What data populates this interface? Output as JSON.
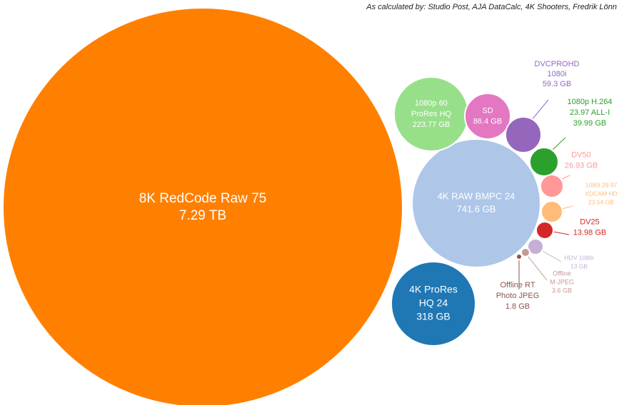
{
  "attribution": "As calculated by: Studio Post, AJA DataCalc, 4K Shooters, Fredrik Lönn",
  "chart_data": {
    "type": "bubble",
    "unit_note": "storage size",
    "bubbles": [
      {
        "id": "redcode",
        "lines": [
          "8K RedCode Raw 75",
          "7.29 TB"
        ],
        "value_gb": 7290,
        "color": "#ff8000",
        "label_color": "#ffffff"
      },
      {
        "id": "bmpc",
        "lines": [
          "4K RAW  BMPC 24",
          "741.6 GB"
        ],
        "value_gb": 741.6,
        "color": "#aec7e8",
        "label_color": "#ffffff"
      },
      {
        "id": "prores4k",
        "lines": [
          "4K ProRes",
          "HQ 24",
          "318 GB"
        ],
        "value_gb": 318,
        "color": "#1f77b4",
        "label_color": "#ffffff"
      },
      {
        "id": "prores1080",
        "lines": [
          "1080p 60",
          "ProRes HQ",
          "223.77 GB"
        ],
        "value_gb": 223.77,
        "color": "#98df8a",
        "label_color": "#ffffff"
      },
      {
        "id": "sd",
        "lines": [
          "SD",
          "86.4 GB"
        ],
        "value_gb": 86.4,
        "color": "#e377c2",
        "label_color": "#ffffff"
      },
      {
        "id": "dvcprohd",
        "lines": [
          "DVCPROHD",
          "1080i",
          "59.3 GB"
        ],
        "value_gb": 59.3,
        "color": "#9467bd",
        "label_color": "#9467bd"
      },
      {
        "id": "h264",
        "lines": [
          "1080p H.264",
          "23.97 ALL-I",
          "39.99 GB"
        ],
        "value_gb": 39.99,
        "color": "#2ca02c",
        "label_color": "#2ca02c"
      },
      {
        "id": "dv50",
        "lines": [
          "DV50",
          "26.93 GB"
        ],
        "value_gb": 26.93,
        "color": "#ff9896",
        "label_color": "#ff9896"
      },
      {
        "id": "xdcam",
        "lines": [
          "1080i 29.97",
          "XDCAM HD",
          "23.54 GB"
        ],
        "value_gb": 23.54,
        "color": "#ffbb78",
        "label_color": "#ffbb78"
      },
      {
        "id": "dv25",
        "lines": [
          "DV25",
          "13.98 GB"
        ],
        "value_gb": 13.98,
        "color": "#d62728",
        "label_color": "#d62728"
      },
      {
        "id": "hdv",
        "lines": [
          "HDV 1080i",
          "13 GB"
        ],
        "value_gb": 13,
        "color": "#c5b0d5",
        "label_color": "#c5b0d5"
      },
      {
        "id": "mjpeg",
        "lines": [
          "Offline",
          "M-JPEG",
          "3.6 GB"
        ],
        "value_gb": 3.6,
        "color": "#c49c94",
        "label_color": "#c49c94"
      },
      {
        "id": "photojpeg",
        "lines": [
          "Offline RT",
          "Photo JPEG",
          "1.8 GB"
        ],
        "value_gb": 1.8,
        "color": "#8c564b",
        "label_color": "#8c564b"
      }
    ]
  }
}
